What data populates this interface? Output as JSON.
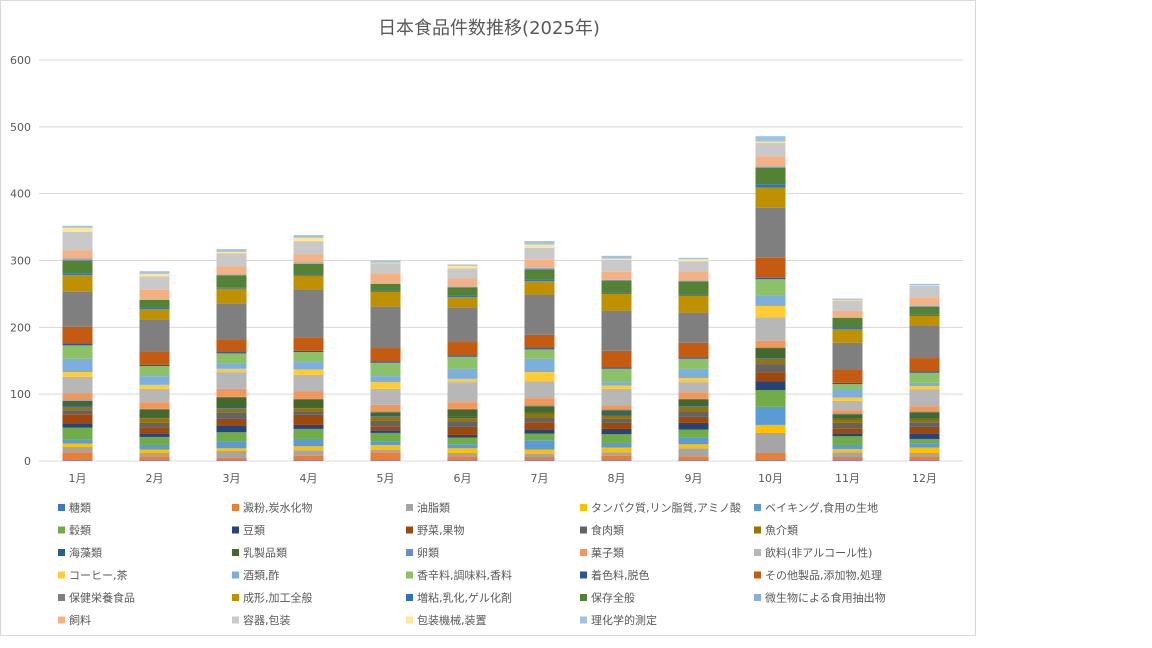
{
  "chart_data": {
    "type": "bar",
    "stacked": true,
    "title": "日本食品件数推移(2025年)",
    "xlabel": "",
    "ylabel": "",
    "ylim": [
      0,
      600
    ],
    "yticks": [
      0,
      100,
      200,
      300,
      400,
      500,
      600
    ],
    "grid": true,
    "legend_position": "bottom",
    "categories": [
      "1月",
      "2月",
      "3月",
      "4月",
      "5月",
      "6月",
      "7月",
      "8月",
      "9月",
      "10月",
      "11月",
      "12月"
    ],
    "series": [
      {
        "name": "糖類",
        "color": "#4472c4",
        "values": [
          1,
          1,
          1,
          1,
          1,
          1,
          1,
          1,
          1,
          1,
          1,
          1
        ]
      },
      {
        "name": "澱粉,炭水化物",
        "color": "#ed7d31",
        "values": [
          12,
          6,
          4,
          7,
          12,
          6,
          5,
          7,
          6,
          11,
          5,
          6
        ]
      },
      {
        "name": "油脂類",
        "color": "#a5a5a5",
        "values": [
          8,
          5,
          10,
          8,
          4,
          5,
          5,
          5,
          12,
          30,
          7,
          5
        ]
      },
      {
        "name": "タンパク質,リン脂質,アミノ酸",
        "color": "#ffc000",
        "values": [
          5,
          5,
          4,
          6,
          7,
          7,
          6,
          7,
          6,
          12,
          5,
          8
        ]
      },
      {
        "name": "ベイキング,食用の生地",
        "color": "#5b9bd5",
        "values": [
          6,
          7,
          10,
          11,
          5,
          6,
          14,
          7,
          10,
          27,
          6,
          6
        ]
      },
      {
        "name": "穀類",
        "color": "#70ad47",
        "values": [
          18,
          12,
          14,
          15,
          13,
          10,
          10,
          13,
          12,
          25,
          13,
          7
        ]
      },
      {
        "name": "豆類",
        "color": "#264478",
        "values": [
          6,
          5,
          10,
          6,
          4,
          4,
          6,
          8,
          10,
          13,
          4,
          8
        ]
      },
      {
        "name": "野菜,果物",
        "color": "#9e480e",
        "values": [
          14,
          9,
          10,
          15,
          6,
          12,
          11,
          9,
          9,
          14,
          8,
          10
        ]
      },
      {
        "name": "食肉類",
        "color": "#636363",
        "values": [
          6,
          7,
          10,
          5,
          8,
          8,
          7,
          6,
          8,
          12,
          8,
          7
        ]
      },
      {
        "name": "魚介類",
        "color": "#997300",
        "values": [
          5,
          7,
          5,
          5,
          6,
          5,
          6,
          5,
          7,
          8,
          5,
          4
        ]
      },
      {
        "name": "海藻類",
        "color": "#255e91",
        "values": [
          2,
          1,
          1,
          1,
          1,
          2,
          1,
          3,
          1,
          1,
          1,
          1
        ]
      },
      {
        "name": "乳製品類",
        "color": "#43682b",
        "values": [
          7,
          12,
          16,
          12,
          6,
          11,
          10,
          5,
          10,
          15,
          7,
          10
        ]
      },
      {
        "name": "卵類",
        "color": "#698ed0",
        "values": [
          1,
          1,
          1,
          1,
          1,
          1,
          1,
          1,
          1,
          1,
          1,
          1
        ]
      },
      {
        "name": "菓子類",
        "color": "#f1975a",
        "values": [
          10,
          10,
          12,
          11,
          10,
          10,
          11,
          6,
          10,
          10,
          5,
          8
        ]
      },
      {
        "name": "飲料(非アルコール性)",
        "color": "#b7b7b7",
        "values": [
          25,
          20,
          25,
          25,
          24,
          30,
          25,
          25,
          15,
          35,
          14,
          25
        ]
      },
      {
        "name": "コーヒー,茶",
        "color": "#ffcd33",
        "values": [
          7,
          6,
          5,
          8,
          10,
          5,
          14,
          5,
          6,
          17,
          5,
          5
        ]
      },
      {
        "name": "酒類,酢",
        "color": "#7cafdd",
        "values": [
          20,
          13,
          8,
          11,
          9,
          15,
          20,
          5,
          14,
          15,
          12,
          5
        ]
      },
      {
        "name": "香辛料,調味料,香料",
        "color": "#8cc168",
        "values": [
          20,
          15,
          15,
          15,
          20,
          18,
          14,
          20,
          15,
          25,
          8,
          15
        ]
      },
      {
        "name": "着色料,脱色",
        "color": "#2f5597",
        "values": [
          3,
          2,
          2,
          2,
          2,
          2,
          2,
          2,
          2,
          2,
          2,
          2
        ]
      },
      {
        "name": "その他製品,添加物,処理",
        "color": "#c55a11",
        "values": [
          25,
          20,
          18,
          20,
          20,
          20,
          20,
          25,
          22,
          30,
          20,
          20
        ]
      },
      {
        "name": "保健栄養食品",
        "color": "#7f7f7f",
        "values": [
          52,
          48,
          55,
          72,
          62,
          52,
          60,
          60,
          45,
          75,
          40,
          48
        ]
      },
      {
        "name": "成形,加工全般",
        "color": "#bf9000",
        "values": [
          25,
          15,
          22,
          20,
          22,
          15,
          20,
          25,
          25,
          30,
          20,
          15
        ]
      },
      {
        "name": "増粘,乳化,ゲル化剤",
        "color": "#2e75b6",
        "values": [
          2,
          2,
          2,
          2,
          2,
          2,
          2,
          2,
          2,
          5,
          2,
          2
        ]
      },
      {
        "name": "保存全般",
        "color": "#548235",
        "values": [
          20,
          12,
          18,
          16,
          10,
          13,
          16,
          18,
          20,
          25,
          15,
          12
        ]
      },
      {
        "name": "微生物による食用抽出物",
        "color": "#8faadc",
        "values": [
          3,
          1,
          1,
          2,
          1,
          1,
          2,
          1,
          1,
          2,
          1,
          1
        ]
      },
      {
        "name": "飼料",
        "color": "#f4b183",
        "values": [
          12,
          14,
          12,
          12,
          15,
          12,
          12,
          12,
          14,
          15,
          10,
          12
        ]
      },
      {
        "name": "容器,包装",
        "color": "#c9c9c9",
        "values": [
          28,
          20,
          20,
          20,
          15,
          15,
          18,
          18,
          15,
          20,
          15,
          18
        ]
      },
      {
        "name": "包装機械,装置",
        "color": "#ffe699",
        "values": [
          6,
          4,
          2,
          5,
          1,
          4,
          5,
          2,
          3,
          2,
          1,
          1
        ]
      },
      {
        "name": "理化学的測定",
        "color": "#9dc3e6",
        "values": [
          3,
          4,
          4,
          4,
          3,
          2,
          5,
          4,
          2,
          8,
          2,
          2
        ]
      }
    ]
  }
}
